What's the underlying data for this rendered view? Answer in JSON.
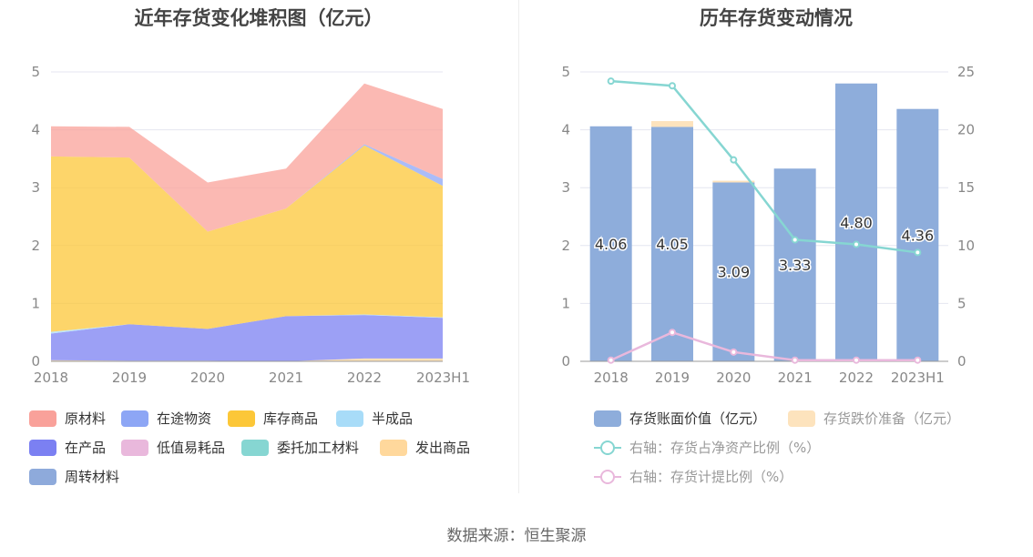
{
  "source_note": "数据来源：恒生聚源",
  "chart_data": [
    {
      "type": "area",
      "title": "近年存货变化堆积图（亿元）",
      "stacked": true,
      "categories": [
        "2018",
        "2019",
        "2020",
        "2021",
        "2022",
        "2023H1"
      ],
      "ylim": [
        0,
        5
      ],
      "yticks": [
        "0",
        "1",
        "2",
        "3",
        "4",
        "5"
      ],
      "grid": true,
      "legend_position": "bottom",
      "series": [
        {
          "name": "原材料",
          "color": "#f9a19a",
          "values": [
            0,
            0,
            0,
            0,
            0,
            0
          ]
        },
        {
          "name": "在途物资",
          "color": "#8da6f5",
          "values": [
            0,
            0,
            0,
            0,
            0.02,
            0.12
          ]
        },
        {
          "name": "库存商品",
          "color": "#fcc738",
          "values": [
            3.03,
            2.88,
            1.68,
            1.86,
            2.92,
            2.27
          ]
        },
        {
          "name": "半成品",
          "color": "#a8dcf8",
          "values": [
            0.03,
            0,
            0,
            0,
            0.01,
            0.01
          ]
        },
        {
          "name": "在产品",
          "color": "#7b80f2",
          "values": [
            0.46,
            0.63,
            0.55,
            0.78,
            0.75,
            0.7
          ]
        },
        {
          "name": "低值易耗品",
          "color": "#e9b8dc",
          "values": [
            0,
            0,
            0,
            0,
            0,
            0
          ]
        },
        {
          "name": "委托加工材料",
          "color": "#86d6d2",
          "values": [
            0,
            0,
            0,
            0,
            0,
            0
          ]
        },
        {
          "name": "发出商品",
          "color": "#ffd89c",
          "values": [
            0.02,
            0.01,
            0.01,
            0,
            0.05,
            0.05
          ]
        },
        {
          "name": "周转材料",
          "color": "#8eaadb",
          "values": [
            0,
            0,
            0,
            0,
            0,
            0
          ]
        }
      ],
      "stack_order": [
        "发出商品",
        "在产品",
        "半成品",
        "库存商品",
        "在途物资",
        "原材料"
      ],
      "top_series_values": [
        0.52,
        0.53,
        0.85,
        0.69,
        1.05,
        1.21
      ]
    },
    {
      "type": "bar",
      "title": "历年存货变动情况",
      "categories": [
        "2018",
        "2019",
        "2020",
        "2021",
        "2022",
        "2023H1"
      ],
      "ylim": [
        0,
        5
      ],
      "yticks": [
        "0",
        "1",
        "2",
        "3",
        "4",
        "5"
      ],
      "y2lim": [
        0,
        25
      ],
      "y2ticks": [
        "0",
        "5",
        "10",
        "15",
        "20",
        "25"
      ],
      "grid": true,
      "legend_position": "bottom",
      "bars": [
        {
          "name": "存货账面价值（亿元）",
          "color": "#8eaddb",
          "values": [
            4.06,
            4.05,
            3.09,
            3.33,
            4.8,
            4.36
          ],
          "labels": [
            "4.06",
            "4.05",
            "3.09",
            "3.33",
            "4.80",
            "4.36"
          ]
        },
        {
          "name": "存货跌价准备（亿元）",
          "color": "#fde3bd",
          "values": [
            0.0,
            0.1,
            0.03,
            0.0,
            0.0,
            0.0
          ]
        }
      ],
      "lines": [
        {
          "name": "右轴：存货占净资产比例（%）",
          "color": "#86d6d2",
          "values": [
            24.2,
            23.8,
            17.4,
            10.5,
            10.1,
            9.4
          ]
        },
        {
          "name": "右轴：存货计提比例（%）",
          "color": "#e9b8dc",
          "values": [
            0.1,
            2.5,
            0.8,
            0.1,
            0.1,
            0.1
          ]
        }
      ]
    }
  ]
}
